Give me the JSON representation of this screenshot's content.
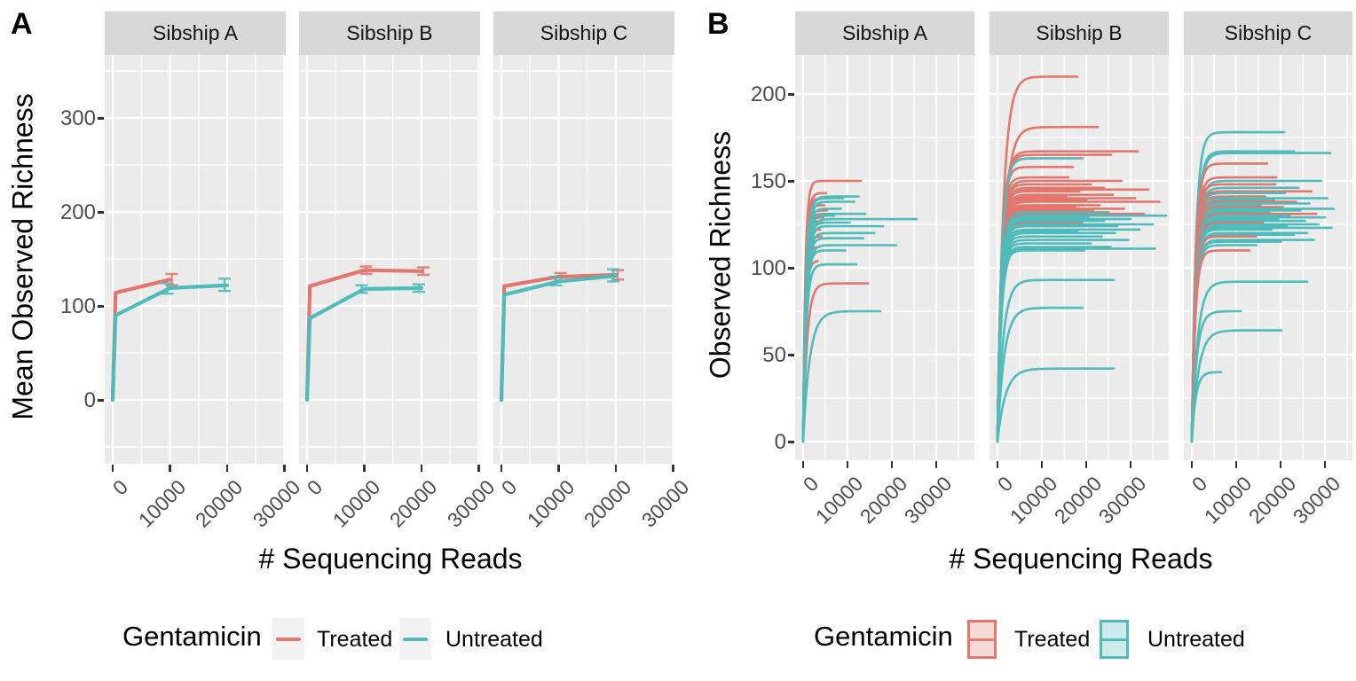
{
  "colors": {
    "treated": "#E5766D",
    "untreated": "#4FBBBB",
    "treated_fill": "#F6DAD6",
    "untreated_fill": "#CFEAEA",
    "panel_bg": "#EBEBEB",
    "strip_bg": "#D8D8D8",
    "grid": "#FFFFFF",
    "axis_text": "#4D4D4D",
    "tick": "#333333",
    "legend_key_bg": "#F2F2F2"
  },
  "chart_data": [
    {
      "type": "line",
      "panel_label": "A",
      "facets": [
        "Sibship A",
        "Sibship B",
        "Sibship C"
      ],
      "xlabel": "# Sequencing Reads",
      "ylabel": "Mean Observed Richness",
      "x_ticks": [
        0,
        10000,
        20000,
        30000
      ],
      "y_ticks": [
        0,
        100,
        200,
        300
      ],
      "xlim": [
        -1400,
        30250
      ],
      "ylim": [
        -68,
        367
      ],
      "grid": true,
      "legend": {
        "title": "Gentamicin",
        "position": "bottom",
        "entries": [
          "Treated",
          "Untreated"
        ],
        "key_style": "line"
      },
      "series_by_facet": [
        [
          {
            "name": "Treated",
            "group": "T",
            "points": [
              [
                0,
                0
              ],
              [
                500,
                114
              ],
              [
                10000,
                128
              ]
            ],
            "error_bars": [
              {
                "x": 10000,
                "lo": 122,
                "hi": 134
              }
            ]
          },
          {
            "name": "Untreated",
            "group": "U",
            "points": [
              [
                0,
                0
              ],
              [
                500,
                90
              ],
              [
                10000,
                119
              ],
              [
                20000,
                122
              ]
            ],
            "error_bars": [
              {
                "x": 10000,
                "lo": 113,
                "hi": 124
              },
              {
                "x": 20000,
                "lo": 116,
                "hi": 129
              }
            ]
          }
        ],
        [
          {
            "name": "Treated",
            "group": "T",
            "points": [
              [
                0,
                0
              ],
              [
                500,
                121
              ],
              [
                10000,
                138
              ],
              [
                20000,
                137
              ]
            ],
            "error_bars": [
              {
                "x": 10000,
                "lo": 134,
                "hi": 142
              },
              {
                "x": 20000,
                "lo": 133,
                "hi": 141
              }
            ]
          },
          {
            "name": "Untreated",
            "group": "U",
            "points": [
              [
                0,
                0
              ],
              [
                500,
                87
              ],
              [
                10000,
                118
              ],
              [
                20000,
                119
              ]
            ],
            "error_bars": [
              {
                "x": 10000,
                "lo": 114,
                "hi": 122
              },
              {
                "x": 20000,
                "lo": 115,
                "hi": 123
              }
            ]
          }
        ],
        [
          {
            "name": "Treated",
            "group": "T",
            "points": [
              [
                0,
                0
              ],
              [
                500,
                121
              ],
              [
                10000,
                131
              ],
              [
                20000,
                133
              ]
            ],
            "error_bars": [
              {
                "x": 10000,
                "lo": 127,
                "hi": 135
              },
              {
                "x": 20000,
                "lo": 128,
                "hi": 138
              }
            ]
          },
          {
            "name": "Untreated",
            "group": "U",
            "points": [
              [
                0,
                0
              ],
              [
                500,
                112
              ],
              [
                10000,
                126
              ],
              [
                20000,
                132
              ]
            ],
            "error_bars": [
              {
                "x": 10000,
                "lo": 122,
                "hi": 131
              },
              {
                "x": 20000,
                "lo": 126,
                "hi": 139
              }
            ]
          }
        ]
      ]
    },
    {
      "type": "line",
      "panel_label": "B",
      "facets": [
        "Sibship A",
        "Sibship B",
        "Sibship C"
      ],
      "xlabel": "# Sequencing Reads",
      "ylabel": "Observed Richness",
      "x_ticks": [
        0,
        10000,
        20000,
        30000
      ],
      "y_ticks": [
        0,
        50,
        100,
        150,
        200
      ],
      "xlim": [
        -1800,
        38600
      ],
      "ylim": [
        -11,
        222
      ],
      "grid": true,
      "legend": {
        "title": "Gentamicin",
        "position": "bottom",
        "entries": [
          "Treated",
          "Untreated"
        ],
        "key_style": "box"
      },
      "curve_model": "richness = plateau * (1 - exp(-reads/tau))",
      "curve_columns": [
        "group",
        "plateau",
        "end_reads",
        "tau"
      ],
      "curves_by_facet": [
        [
          [
            "T",
            150,
            13000,
            500
          ],
          [
            "T",
            143,
            5200,
            550
          ],
          [
            "T",
            140,
            5600,
            520
          ],
          [
            "T",
            136,
            4800,
            520
          ],
          [
            "T",
            133,
            5400,
            540
          ],
          [
            "T",
            131,
            7000,
            560
          ],
          [
            "T",
            129,
            4500,
            520
          ],
          [
            "T",
            127,
            4200,
            500
          ],
          [
            "T",
            122,
            3800,
            480
          ],
          [
            "T",
            118,
            4200,
            500
          ],
          [
            "T",
            112,
            3600,
            480
          ],
          [
            "T",
            104,
            3300,
            520
          ],
          [
            "T",
            91,
            14600,
            900
          ],
          [
            "U",
            141,
            12500,
            700
          ],
          [
            "U",
            140,
            9000,
            650
          ],
          [
            "U",
            138,
            11500,
            700
          ],
          [
            "U",
            134,
            8500,
            650
          ],
          [
            "U",
            131,
            14000,
            700
          ],
          [
            "U",
            130,
            7000,
            620
          ],
          [
            "U",
            128,
            25600,
            750
          ],
          [
            "U",
            126,
            10500,
            680
          ],
          [
            "U",
            124,
            18000,
            720
          ],
          [
            "U",
            120,
            16000,
            700
          ],
          [
            "U",
            117,
            13500,
            680
          ],
          [
            "U",
            113,
            21000,
            720
          ],
          [
            "U",
            110,
            9500,
            650
          ],
          [
            "U",
            102,
            12000,
            700
          ],
          [
            "U",
            75,
            17400,
            1500
          ]
        ],
        [
          [
            "T",
            210,
            18000,
            1300
          ],
          [
            "T",
            181,
            22600,
            1400
          ],
          [
            "T",
            167,
            31600,
            1000
          ],
          [
            "T",
            165,
            25600,
            950
          ],
          [
            "T",
            163,
            19200,
            900
          ],
          [
            "T",
            158,
            17000,
            850
          ],
          [
            "T",
            152,
            16000,
            820
          ],
          [
            "T",
            150,
            28000,
            900
          ],
          [
            "T",
            148,
            21000,
            850
          ],
          [
            "T",
            146,
            24000,
            880
          ],
          [
            "T",
            145,
            34000,
            900
          ],
          [
            "T",
            144,
            18500,
            820
          ],
          [
            "T",
            142,
            26000,
            860
          ],
          [
            "T",
            141,
            15500,
            800
          ],
          [
            "T",
            140,
            31000,
            860
          ],
          [
            "T",
            139,
            20000,
            820
          ],
          [
            "T",
            138,
            36500,
            900
          ],
          [
            "T",
            136,
            23000,
            840
          ],
          [
            "T",
            135,
            17500,
            800
          ],
          [
            "T",
            134,
            28500,
            850
          ],
          [
            "T",
            133,
            21500,
            820
          ],
          [
            "T",
            131,
            33000,
            850
          ],
          [
            "T",
            128,
            16500,
            780
          ],
          [
            "T",
            126,
            19000,
            800
          ],
          [
            "T",
            124,
            22000,
            800
          ],
          [
            "U",
            163,
            18600,
            950
          ],
          [
            "U",
            132,
            25000,
            850
          ],
          [
            "U",
            130,
            38000,
            900
          ],
          [
            "U",
            129,
            20500,
            820
          ],
          [
            "U",
            128,
            30000,
            860
          ],
          [
            "U",
            127,
            24000,
            840
          ],
          [
            "U",
            125,
            35000,
            880
          ],
          [
            "U",
            124,
            27000,
            840
          ],
          [
            "U",
            122,
            32000,
            860
          ],
          [
            "U",
            121,
            18000,
            800
          ],
          [
            "U",
            120,
            26500,
            840
          ],
          [
            "U",
            118,
            23500,
            820
          ],
          [
            "U",
            116,
            29500,
            840
          ],
          [
            "U",
            114,
            21000,
            800
          ],
          [
            "U",
            112,
            25500,
            820
          ],
          [
            "U",
            111,
            35500,
            880
          ],
          [
            "U",
            110,
            19500,
            800
          ],
          [
            "U",
            93,
            26200,
            1300
          ],
          [
            "U",
            77,
            19200,
            1500
          ],
          [
            "U",
            42,
            26200,
            1800
          ]
        ],
        [
          [
            "U",
            178,
            20800,
            900
          ],
          [
            "U",
            167,
            23000,
            950
          ],
          [
            "U",
            166,
            31200,
            1000
          ],
          [
            "T",
            160,
            17000,
            850
          ],
          [
            "T",
            152,
            19000,
            850
          ],
          [
            "U",
            150,
            29200,
            950
          ],
          [
            "T",
            148,
            18800,
            820
          ],
          [
            "U",
            146,
            24000,
            900
          ],
          [
            "T",
            144,
            27000,
            850
          ],
          [
            "U",
            143,
            21000,
            860
          ],
          [
            "T",
            141,
            16500,
            800
          ],
          [
            "U",
            140,
            30500,
            900
          ],
          [
            "U",
            139,
            18500,
            840
          ],
          [
            "T",
            138,
            23500,
            820
          ],
          [
            "U",
            137,
            26500,
            880
          ],
          [
            "U",
            136,
            15500,
            820
          ],
          [
            "T",
            135,
            20500,
            800
          ],
          [
            "U",
            134,
            32000,
            880
          ],
          [
            "U",
            133,
            24500,
            860
          ],
          [
            "U",
            132,
            17500,
            820
          ],
          [
            "T",
            131,
            28000,
            820
          ],
          [
            "U",
            130,
            22000,
            840
          ],
          [
            "U",
            129,
            30000,
            860
          ],
          [
            "U",
            128,
            19500,
            820
          ],
          [
            "U",
            127,
            25500,
            850
          ],
          [
            "T",
            126,
            16000,
            780
          ],
          [
            "U",
            125,
            28500,
            850
          ],
          [
            "U",
            124,
            21500,
            820
          ],
          [
            "U",
            123,
            31500,
            860
          ],
          [
            "U",
            122,
            18000,
            800
          ],
          [
            "U",
            120,
            26000,
            840
          ],
          [
            "U",
            119,
            23000,
            820
          ],
          [
            "T",
            118,
            14500,
            760
          ],
          [
            "U",
            116,
            27500,
            840
          ],
          [
            "U",
            115,
            20000,
            800
          ],
          [
            "U",
            113,
            14600,
            800
          ],
          [
            "T",
            110,
            13000,
            780
          ],
          [
            "U",
            92,
            26000,
            1300
          ],
          [
            "U",
            75,
            11000,
            1100
          ],
          [
            "U",
            64,
            20200,
            1500
          ],
          [
            "U",
            40,
            6600,
            900
          ]
        ]
      ]
    }
  ]
}
